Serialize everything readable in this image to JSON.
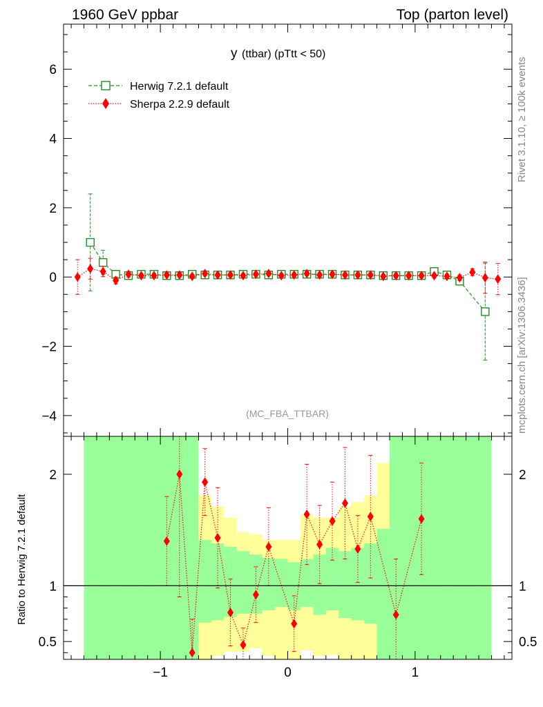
{
  "header": {
    "left_title": "1960 GeV ppbar",
    "right_title": "Top (parton level)"
  },
  "side_labels": {
    "rivet": "Rivet 3.1.10, ≥ 100k events",
    "mcplots": "mcplots.cern.ch [arXiv:1306.3436]"
  },
  "chart_data": [
    {
      "type": "line",
      "panel": "main",
      "title_main": "y",
      "title_sub": "(ttbar) (pTtt < 50)",
      "watermark": "(MC_FBA_TTBAR)",
      "xlim": [
        -1.76,
        1.76
      ],
      "ylim": [
        -4.6,
        7.3
      ],
      "y_tick_labels": [
        "−4",
        "−2",
        "0",
        "2",
        "4",
        "6"
      ],
      "y_tick_values": [
        -4,
        -2,
        0,
        2,
        4,
        6
      ],
      "legend": [
        {
          "name": "Herwig 7.2.1 default",
          "color": "#228B22",
          "marker": "open-square",
          "line": "dashed"
        },
        {
          "name": "Sherpa 2.2.9 default",
          "color": "#FF0000",
          "marker": "diamond",
          "line": "dotted"
        }
      ],
      "series": [
        {
          "name": "Herwig 7.2.1 default",
          "color": "#228B22",
          "x": [
            -1.55,
            -1.45,
            -1.35,
            -1.25,
            -1.15,
            -1.05,
            -0.95,
            -0.85,
            -0.75,
            -0.65,
            -0.55,
            -0.45,
            -0.35,
            -0.25,
            -0.15,
            -0.05,
            0.05,
            0.15,
            0.25,
            0.35,
            0.45,
            0.55,
            0.65,
            0.75,
            0.85,
            0.95,
            1.05,
            1.15,
            1.25,
            1.35,
            1.55
          ],
          "y": [
            1.0,
            0.42,
            0.08,
            0.04,
            0.08,
            0.08,
            0.04,
            0.04,
            0.08,
            0.06,
            0.06,
            0.06,
            0.08,
            0.08,
            0.06,
            0.08,
            0.08,
            0.08,
            0.08,
            0.08,
            0.06,
            0.06,
            0.06,
            0.04,
            0.04,
            0.04,
            0.04,
            0.16,
            0.06,
            -0.12,
            -1.0
          ],
          "err": [
            1.4,
            0.35,
            0.08,
            0.05,
            0.05,
            0.05,
            0.05,
            0.05,
            0.05,
            0.05,
            0.05,
            0.05,
            0.05,
            0.05,
            0.05,
            0.05,
            0.05,
            0.05,
            0.05,
            0.05,
            0.05,
            0.05,
            0.05,
            0.05,
            0.05,
            0.05,
            0.05,
            0.05,
            0.05,
            0.1,
            1.4
          ]
        },
        {
          "name": "Sherpa 2.2.9 default",
          "color": "#FF0000",
          "x": [
            -1.65,
            -1.55,
            -1.45,
            -1.35,
            -1.25,
            -1.15,
            -1.05,
            -0.95,
            -0.85,
            -0.75,
            -0.65,
            -0.55,
            -0.45,
            -0.35,
            -0.25,
            -0.15,
            -0.05,
            0.05,
            0.15,
            0.25,
            0.35,
            0.45,
            0.55,
            0.65,
            0.75,
            0.85,
            0.95,
            1.05,
            1.15,
            1.25,
            1.35,
            1.45,
            1.55,
            1.65
          ],
          "y": [
            0.0,
            0.24,
            0.16,
            -0.1,
            0.08,
            0.04,
            0.04,
            0.06,
            0.06,
            0.02,
            0.1,
            0.06,
            0.06,
            0.04,
            0.08,
            0.1,
            0.04,
            0.06,
            0.1,
            0.06,
            0.08,
            0.06,
            0.06,
            0.06,
            0.02,
            0.04,
            0.04,
            0.04,
            0.04,
            0.02,
            -0.02,
            0.14,
            -0.02,
            -0.06
          ],
          "err": [
            0.5,
            0.3,
            0.15,
            0.1,
            0.08,
            0.06,
            0.06,
            0.06,
            0.06,
            0.06,
            0.06,
            0.06,
            0.06,
            0.06,
            0.06,
            0.06,
            0.06,
            0.06,
            0.06,
            0.06,
            0.06,
            0.06,
            0.06,
            0.06,
            0.06,
            0.06,
            0.06,
            0.06,
            0.06,
            0.06,
            0.08,
            0.1,
            0.45,
            0.45
          ]
        }
      ]
    },
    {
      "type": "line",
      "panel": "ratio",
      "ylabel": "Ratio to Herwig 7.2.1 default",
      "xlim": [
        -1.76,
        1.76
      ],
      "ylim": [
        0.34,
        2.34
      ],
      "y_tick_labels": [
        "0.5",
        "1",
        "2"
      ],
      "y_tick_values": [
        0.5,
        1,
        2
      ],
      "x_tick_labels": [
        "−1",
        "0",
        "1"
      ],
      "x_tick_values": [
        -1,
        0,
        1
      ],
      "reference_line": 1,
      "bands": {
        "bin_edges": [
          -1.6,
          -1.5,
          -1.4,
          -1.3,
          -1.2,
          -1.1,
          -1.0,
          -0.9,
          -0.8,
          -0.7,
          -0.6,
          -0.5,
          -0.4,
          -0.3,
          -0.2,
          -0.1,
          0.0,
          0.1,
          0.2,
          0.3,
          0.4,
          0.5,
          0.6,
          0.7,
          0.8,
          0.9,
          1.0,
          1.1,
          1.2,
          1.3,
          1.4,
          1.5,
          1.6
        ],
        "green_low": [
          0.34,
          0.34,
          0.34,
          0.34,
          0.34,
          0.34,
          0.34,
          0.34,
          0.34,
          0.67,
          0.69,
          0.72,
          0.75,
          0.75,
          0.78,
          0.81,
          0.78,
          0.81,
          0.74,
          0.78,
          0.71,
          0.69,
          0.66,
          0.34,
          0.34,
          0.34,
          0.34,
          0.34,
          0.34,
          0.34,
          0.34,
          0.34
        ],
        "green_high": [
          2.34,
          2.34,
          2.34,
          2.34,
          2.34,
          2.34,
          2.34,
          2.34,
          2.34,
          1.41,
          1.38,
          1.35,
          1.31,
          1.28,
          1.25,
          1.24,
          1.21,
          1.24,
          1.28,
          1.34,
          1.31,
          1.34,
          1.38,
          1.51,
          2.34,
          2.34,
          2.34,
          2.34,
          2.34,
          2.34,
          2.34,
          2.34
        ],
        "yellow_low": [
          0.34,
          0.34,
          0.34,
          0.34,
          0.34,
          0.34,
          0.34,
          0.34,
          0.34,
          0.34,
          0.37,
          0.41,
          0.41,
          0.44,
          0.37,
          0.34,
          0.34,
          0.42,
          0.37,
          0.38,
          0.34,
          0.34,
          0.34,
          0.34,
          0.34,
          0.34,
          0.34,
          0.34,
          0.34,
          0.34,
          0.34,
          0.34
        ],
        "yellow_high": [
          2.34,
          2.34,
          2.34,
          2.34,
          2.34,
          2.34,
          2.34,
          2.34,
          2.34,
          1.81,
          1.71,
          1.61,
          1.48,
          1.46,
          1.41,
          1.41,
          1.41,
          1.64,
          1.61,
          1.61,
          1.71,
          1.75,
          1.81,
          2.1,
          2.34,
          2.34,
          2.34,
          2.34,
          2.34,
          2.34,
          2.34,
          2.34
        ]
      },
      "series": [
        {
          "name": "Sherpa 2.2.9 default",
          "color": "#FF0000",
          "x": [
            -0.95,
            -0.85,
            -0.75,
            -0.65,
            -0.55,
            -0.45,
            -0.35,
            -0.25,
            -0.15,
            0.05,
            0.15,
            0.25,
            0.35,
            0.45,
            0.55,
            0.65,
            0.85,
            1.05
          ],
          "y": [
            1.4,
            2.0,
            0.4,
            1.93,
            1.43,
            0.76,
            0.47,
            0.92,
            1.35,
            0.66,
            1.64,
            1.37,
            1.58,
            1.74,
            1.33,
            1.62,
            0.74,
            1.6
          ],
          "err": [
            0.4,
            1.1,
            0.3,
            0.3,
            0.45,
            0.3,
            0.15,
            0.25,
            0.35,
            0.25,
            0.45,
            0.35,
            0.35,
            0.5,
            0.3,
            0.55,
            0.5,
            0.5
          ]
        }
      ]
    }
  ]
}
